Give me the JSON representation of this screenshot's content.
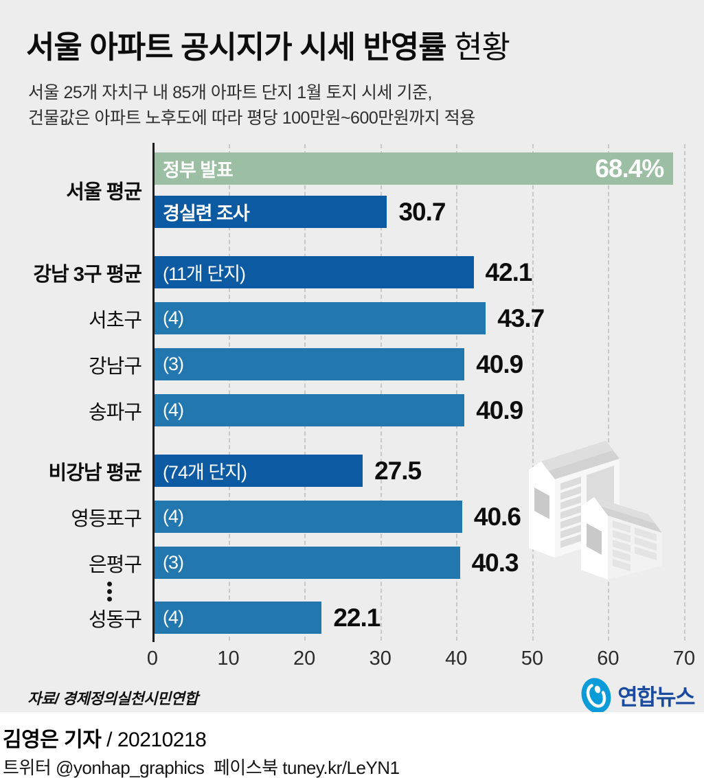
{
  "header": {
    "title_main": "서울 아파트 공시지가 시세 반영률",
    "title_suffix": " 현황",
    "subtitle_line1": "서울 25개 자치구 내 85개 아파트 단지 1월 토지 시세 기준,",
    "subtitle_line2": "건물값은 아파트 노후도에 따라 평당 100만원~600만원까지 적용"
  },
  "chart_data": {
    "type": "bar",
    "orientation": "horizontal",
    "xlim": [
      0,
      70
    ],
    "x_ticks": [
      0,
      10,
      20,
      30,
      40,
      50,
      60,
      70
    ],
    "grid": "dashed-vertical",
    "unit": "%",
    "colors": {
      "government_bar": "#9cbfa4",
      "average_bar": "#0c5aa2",
      "district_bar": "#2277ae",
      "background": "#ededed"
    },
    "rows": [
      {
        "category": "서울 평균",
        "bold": true,
        "bars": [
          {
            "label": "정부 발표",
            "label_bold": true,
            "value": 68.4,
            "display": "68.4%",
            "style": "government",
            "value_inside": true
          },
          {
            "label": "경실련 조사",
            "label_bold": true,
            "value": 30.7,
            "display": "30.7",
            "style": "average"
          }
        ]
      },
      {
        "category": "강남 3구 평균",
        "bold": true,
        "bars": [
          {
            "label": "(11개 단지)",
            "value": 42.1,
            "display": "42.1",
            "style": "average"
          }
        ]
      },
      {
        "category": "서초구",
        "bars": [
          {
            "label": "(4)",
            "value": 43.7,
            "display": "43.7",
            "style": "district"
          }
        ]
      },
      {
        "category": "강남구",
        "bars": [
          {
            "label": "(3)",
            "value": 40.9,
            "display": "40.9",
            "style": "district"
          }
        ]
      },
      {
        "category": "송파구",
        "bars": [
          {
            "label": "(4)",
            "value": 40.9,
            "display": "40.9",
            "style": "district"
          }
        ]
      },
      {
        "category": "비강남 평균",
        "bold": true,
        "bars": [
          {
            "label": "(74개 단지)",
            "value": 27.5,
            "display": "27.5",
            "style": "average"
          }
        ]
      },
      {
        "category": "영등포구",
        "bars": [
          {
            "label": "(4)",
            "value": 40.6,
            "display": "40.6",
            "style": "district"
          }
        ]
      },
      {
        "category": "은평구",
        "bars": [
          {
            "label": "(3)",
            "value": 40.3,
            "display": "40.3",
            "style": "district"
          }
        ]
      },
      {
        "category": "성동구",
        "bars": [
          {
            "label": "(4)",
            "value": 22.1,
            "display": "22.1",
            "style": "district"
          }
        ]
      }
    ],
    "ellipsis_marker": "⋮"
  },
  "decor": {
    "illustration": "apartment-buildings"
  },
  "footer": {
    "source": "자료/ 경제정의실천시민연합",
    "logo_text": "연합뉴스",
    "logo_blue": "#0a9bd8",
    "logo_text_color": "#1a4b9e",
    "byline_name": "김영은 기자",
    "byline_date": " / 20210218",
    "social_line": "트위터 @yonhap_graphics  페이스북 tuney.kr/LeYN1"
  }
}
